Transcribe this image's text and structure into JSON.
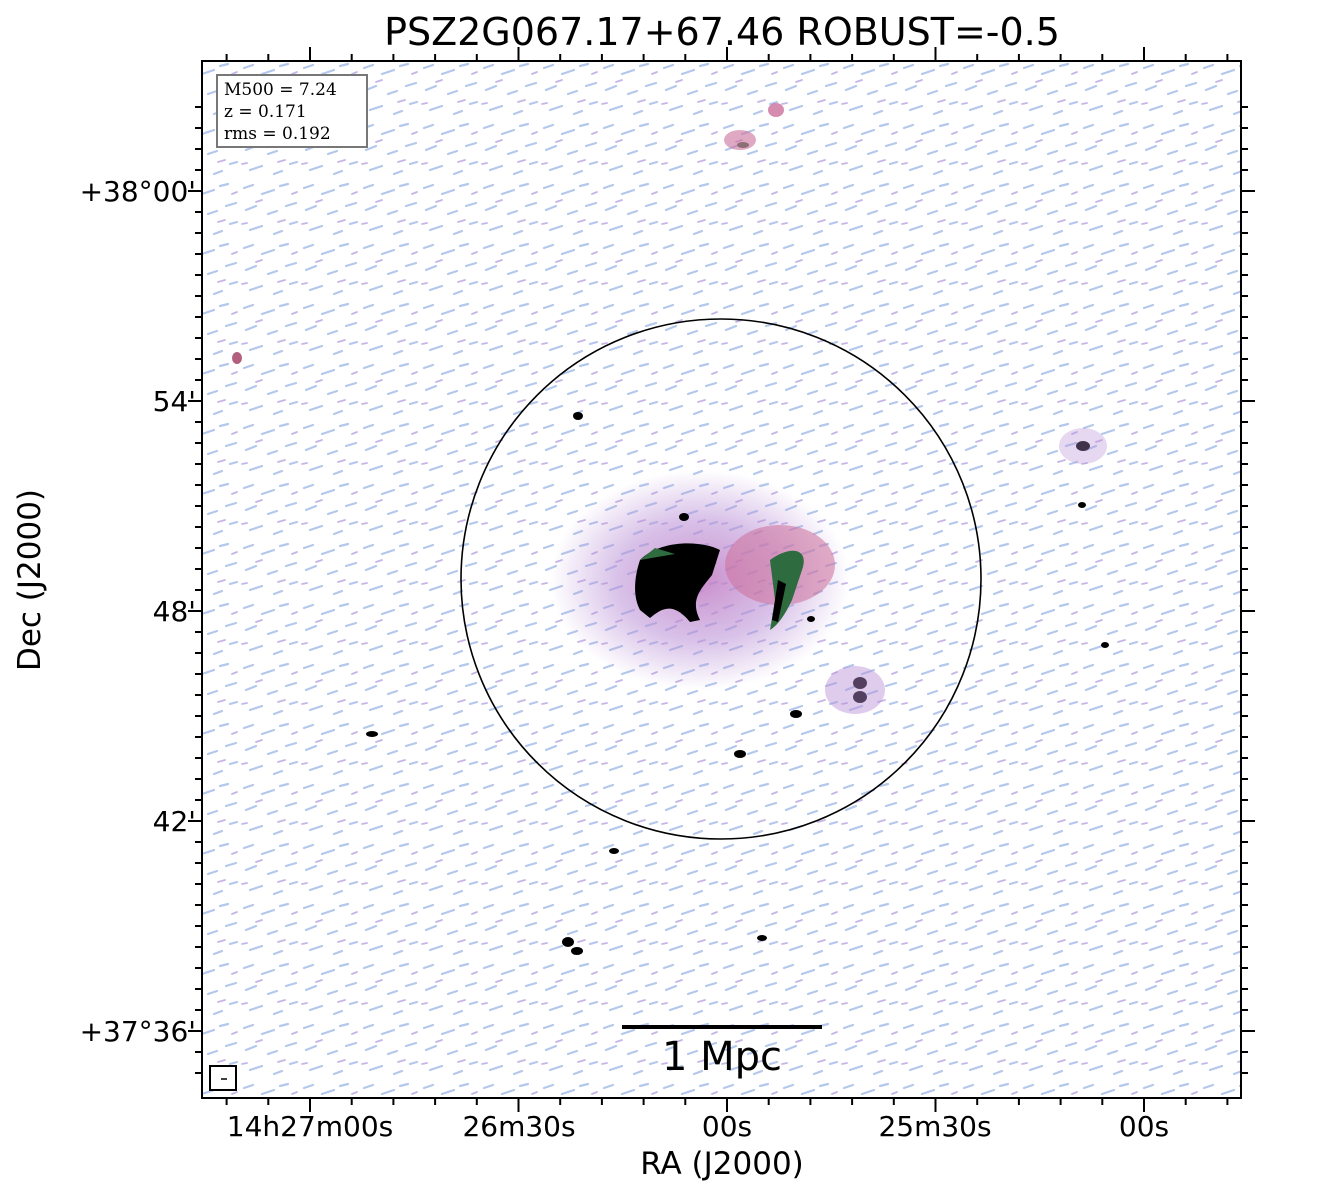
{
  "title": "PSZ2G067.17+67.46 ROBUST=-0.5",
  "axes": {
    "xlabel": "RA (J2000)",
    "ylabel": "Dec (J2000)",
    "xticks": [
      "14h27m00s",
      "26m30s",
      "00s",
      "25m30s",
      "00s"
    ],
    "yticks": [
      "+38°00'",
      "54'",
      "48'",
      "42'",
      "+37°36'"
    ]
  },
  "info_box": {
    "line1": "M500 = 7.24",
    "line2": "z = 0.171",
    "line3": "rms = 0.192"
  },
  "scale_bar": {
    "label": "1 Mpc"
  },
  "colors": {
    "noise_blue": "#b3c8ec",
    "emission_purple": "#b98fd6",
    "emission_pink": "#cc6f9b",
    "emission_green": "#2e6b3e",
    "core": "#000000"
  }
}
